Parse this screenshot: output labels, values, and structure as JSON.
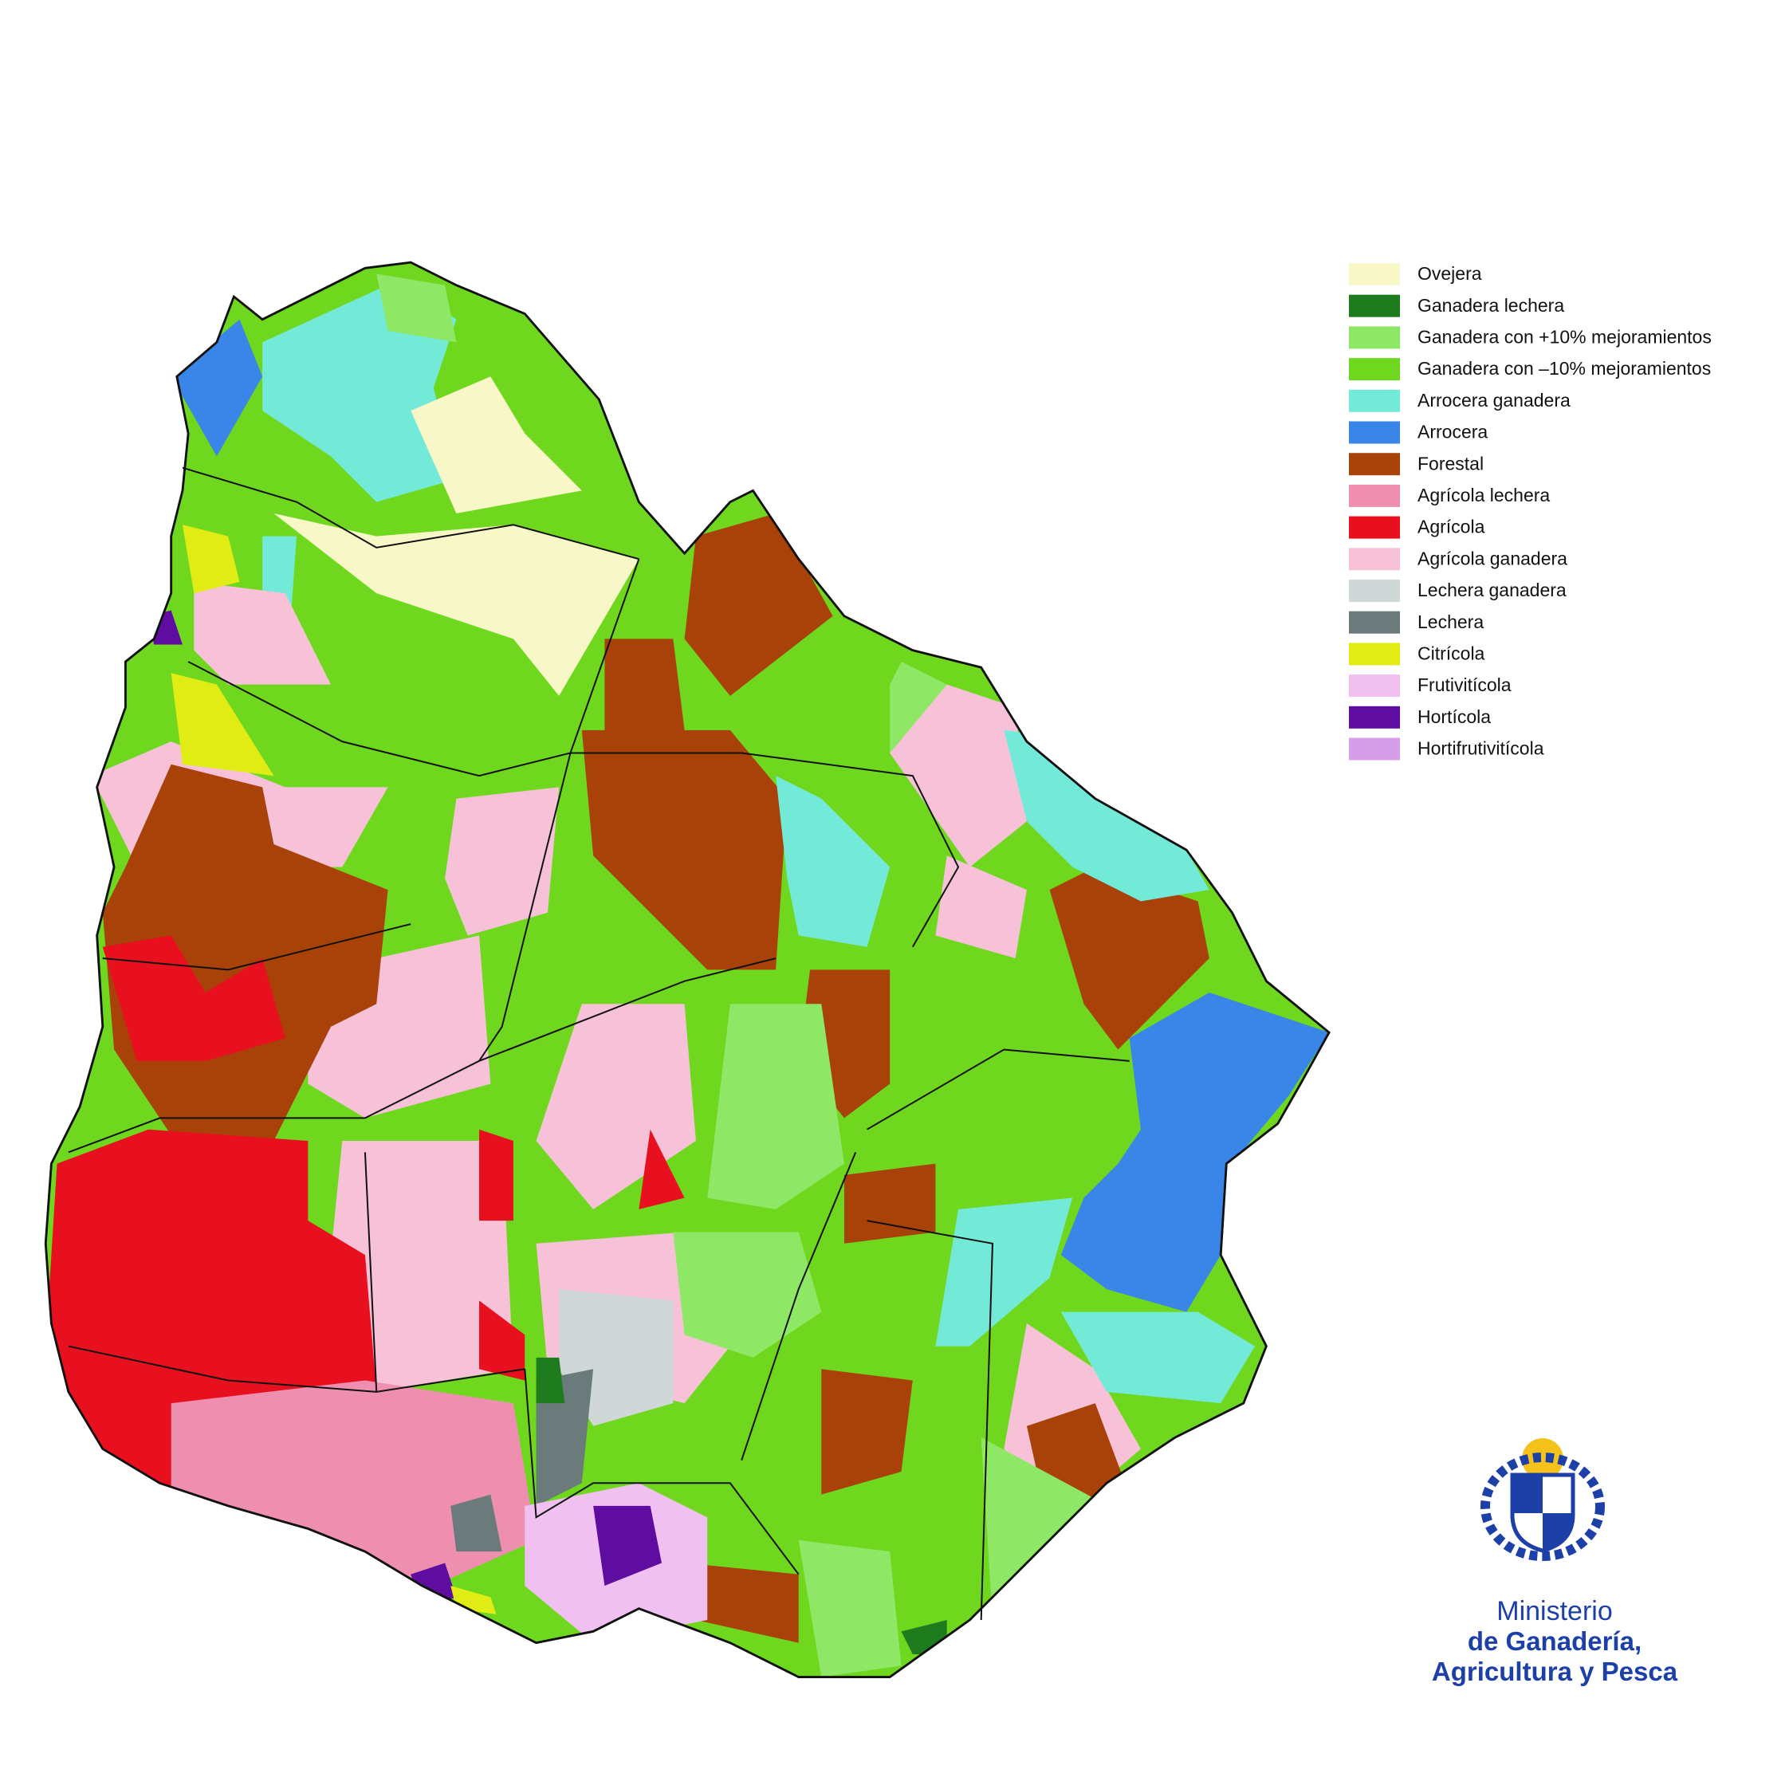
{
  "legend": {
    "items": [
      {
        "label": "Ovejera",
        "color": "#f7f7c8"
      },
      {
        "label": "Ganadera lechera",
        "color": "#1e7b1e"
      },
      {
        "label": "Ganadera con +10% mejoramientos",
        "color": "#8ee866"
      },
      {
        "label": "Ganadera con –10% mejoramientos",
        "color": "#6fd81e"
      },
      {
        "label": "Arrocera ganadera",
        "color": "#73ead7"
      },
      {
        "label": "Arrocera",
        "color": "#3a86e8"
      },
      {
        "label": "Forestal",
        "color": "#a84208"
      },
      {
        "label": "Agrícola lechera",
        "color": "#ee8fb0"
      },
      {
        "label": "Agrícola",
        "color": "#e8101e"
      },
      {
        "label": "Agrícola ganadera",
        "color": "#f7c2d8"
      },
      {
        "label": "Lechera ganadera",
        "color": "#cfd8d6"
      },
      {
        "label": "Lechera",
        "color": "#6b7b7c"
      },
      {
        "label": "Citrícola",
        "color": "#e1ec14"
      },
      {
        "label": "Frutivitícola",
        "color": "#f0c0f0"
      },
      {
        "label": "Hortícola",
        "color": "#5e0da0"
      },
      {
        "label": "Hortifrutivitícola",
        "color": "#d69ee8"
      }
    ]
  },
  "logo": {
    "lines": [
      "Ministerio",
      "de Ganadería,",
      "Agricultura y Pesca"
    ]
  }
}
